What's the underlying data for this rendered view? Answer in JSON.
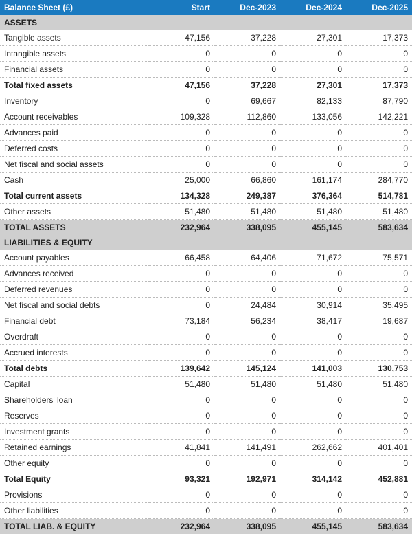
{
  "title": "Balance Sheet (£)",
  "columns": [
    "Start",
    "Dec-2023",
    "Dec-2024",
    "Dec-2025"
  ],
  "header_bg": "#1a7ac0",
  "header_fg": "#ffffff",
  "section_bg": "#cfcfcf",
  "rows": [
    {
      "type": "section",
      "label": "ASSETS"
    },
    {
      "type": "row",
      "label": "Tangible assets",
      "vals": [
        "47,156",
        "37,228",
        "27,301",
        "17,373"
      ]
    },
    {
      "type": "row",
      "label": "Intangible assets",
      "vals": [
        "0",
        "0",
        "0",
        "0"
      ]
    },
    {
      "type": "row",
      "label": "Financial assets",
      "vals": [
        "0",
        "0",
        "0",
        "0"
      ]
    },
    {
      "type": "subtotal",
      "label": "Total fixed assets",
      "vals": [
        "47,156",
        "37,228",
        "27,301",
        "17,373"
      ]
    },
    {
      "type": "row",
      "label": "Inventory",
      "vals": [
        "0",
        "69,667",
        "82,133",
        "87,790"
      ]
    },
    {
      "type": "row",
      "label": "Account receivables",
      "vals": [
        "109,328",
        "112,860",
        "133,056",
        "142,221"
      ]
    },
    {
      "type": "row",
      "label": "Advances paid",
      "vals": [
        "0",
        "0",
        "0",
        "0"
      ]
    },
    {
      "type": "row",
      "label": "Deferred costs",
      "vals": [
        "0",
        "0",
        "0",
        "0"
      ]
    },
    {
      "type": "row",
      "label": "Net fiscal and social assets",
      "vals": [
        "0",
        "0",
        "0",
        "0"
      ]
    },
    {
      "type": "row",
      "label": "Cash",
      "vals": [
        "25,000",
        "66,860",
        "161,174",
        "284,770"
      ]
    },
    {
      "type": "subtotal",
      "label": "Total current assets",
      "vals": [
        "134,328",
        "249,387",
        "376,364",
        "514,781"
      ]
    },
    {
      "type": "row",
      "label": "Other assets",
      "vals": [
        "51,480",
        "51,480",
        "51,480",
        "51,480"
      ]
    },
    {
      "type": "grand",
      "label": "TOTAL ASSETS",
      "vals": [
        "232,964",
        "338,095",
        "455,145",
        "583,634"
      ]
    },
    {
      "type": "section",
      "label": "LIABILITIES & EQUITY"
    },
    {
      "type": "row",
      "label": "Account payables",
      "vals": [
        "66,458",
        "64,406",
        "71,672",
        "75,571"
      ]
    },
    {
      "type": "row",
      "label": "Advances received",
      "vals": [
        "0",
        "0",
        "0",
        "0"
      ]
    },
    {
      "type": "row",
      "label": "Deferred revenues",
      "vals": [
        "0",
        "0",
        "0",
        "0"
      ]
    },
    {
      "type": "row",
      "label": "Net fiscal and social debts",
      "vals": [
        "0",
        "24,484",
        "30,914",
        "35,495"
      ]
    },
    {
      "type": "row",
      "label": "Financial debt",
      "vals": [
        "73,184",
        "56,234",
        "38,417",
        "19,687"
      ]
    },
    {
      "type": "row",
      "label": "Overdraft",
      "vals": [
        "0",
        "0",
        "0",
        "0"
      ]
    },
    {
      "type": "row",
      "label": "Accrued interests",
      "vals": [
        "0",
        "0",
        "0",
        "0"
      ]
    },
    {
      "type": "subtotal",
      "label": "Total debts",
      "vals": [
        "139,642",
        "145,124",
        "141,003",
        "130,753"
      ]
    },
    {
      "type": "row",
      "label": "Capital",
      "vals": [
        "51,480",
        "51,480",
        "51,480",
        "51,480"
      ]
    },
    {
      "type": "row",
      "label": "Shareholders' loan",
      "vals": [
        "0",
        "0",
        "0",
        "0"
      ]
    },
    {
      "type": "row",
      "label": "Reserves",
      "vals": [
        "0",
        "0",
        "0",
        "0"
      ]
    },
    {
      "type": "row",
      "label": "Investment grants",
      "vals": [
        "0",
        "0",
        "0",
        "0"
      ]
    },
    {
      "type": "row",
      "label": "Retained earnings",
      "vals": [
        "41,841",
        "141,491",
        "262,662",
        "401,401"
      ]
    },
    {
      "type": "row",
      "label": "Other equity",
      "vals": [
        "0",
        "0",
        "0",
        "0"
      ]
    },
    {
      "type": "subtotal",
      "label": "Total Equity",
      "vals": [
        "93,321",
        "192,971",
        "314,142",
        "452,881"
      ]
    },
    {
      "type": "row",
      "label": "Provisions",
      "vals": [
        "0",
        "0",
        "0",
        "0"
      ]
    },
    {
      "type": "row",
      "label": "Other liabilities",
      "vals": [
        "0",
        "0",
        "0",
        "0"
      ]
    },
    {
      "type": "grand",
      "label": "TOTAL LIAB. & EQUITY",
      "vals": [
        "232,964",
        "338,095",
        "455,145",
        "583,634"
      ]
    }
  ]
}
